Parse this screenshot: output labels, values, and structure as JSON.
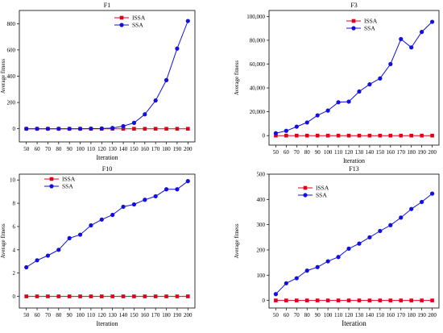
{
  "figure": {
    "background": "#ffffff"
  },
  "style": {
    "issa_color": "#e0001a",
    "ssa_color": "#1010e0",
    "axis_color": "#000000"
  },
  "chart_data": [
    {
      "type": "line",
      "title": "F1",
      "xlabel": "Iteration",
      "ylabel": "Average fitness",
      "categories": [
        "50",
        "60",
        "70",
        "80",
        "90",
        "100",
        "110",
        "120",
        "130",
        "140",
        "150",
        "160",
        "170",
        "180",
        "190",
        "200"
      ],
      "ylim": [
        -100,
        900
      ],
      "yticks": [
        0,
        200,
        400,
        600,
        800
      ],
      "ytick_labels": [
        "0",
        "200",
        "400",
        "600",
        "800"
      ],
      "grid": false,
      "legend_position": "upper-center",
      "series": [
        {
          "name": "ISSA",
          "marker": "square",
          "values": [
            0,
            0,
            0,
            0,
            0,
            0,
            0,
            0,
            0,
            0,
            0,
            0,
            0,
            0,
            0,
            0
          ]
        },
        {
          "name": "SSA",
          "marker": "circle",
          "values": [
            0,
            0,
            0,
            0,
            0,
            0,
            1,
            2,
            6,
            20,
            45,
            110,
            215,
            370,
            610,
            820
          ]
        }
      ]
    },
    {
      "type": "line",
      "title": "F3",
      "xlabel": "Iteration",
      "ylabel": "Average fitness",
      "categories": [
        "50",
        "60",
        "70",
        "80",
        "90",
        "100",
        "110",
        "120",
        "130",
        "140",
        "150",
        "160",
        "170",
        "180",
        "190",
        "200"
      ],
      "ylim": [
        -8000,
        105000
      ],
      "yticks": [
        0,
        20000,
        40000,
        60000,
        80000,
        100000
      ],
      "ytick_labels": [
        "0",
        "20,000",
        "40,000",
        "60,000",
        "80,000",
        "100,000"
      ],
      "grid": false,
      "legend_position": "upper-center",
      "series": [
        {
          "name": "ISSA",
          "marker": "square",
          "values": [
            0,
            0,
            0,
            0,
            0,
            0,
            0,
            0,
            0,
            0,
            0,
            0,
            0,
            0,
            0,
            0
          ]
        },
        {
          "name": "SSA",
          "marker": "circle",
          "values": [
            2000,
            4000,
            7500,
            11000,
            17000,
            21000,
            28000,
            28500,
            37000,
            43000,
            48000,
            60000,
            81000,
            74000,
            87000,
            95500
          ]
        }
      ]
    },
    {
      "type": "line",
      "title": "F10",
      "xlabel": "Iteration",
      "ylabel": "Average fitness",
      "categories": [
        "50",
        "60",
        "70",
        "80",
        "90",
        "100",
        "110",
        "120",
        "130",
        "140",
        "150",
        "160",
        "170",
        "180",
        "190",
        "200"
      ],
      "ylim": [
        -1,
        10.5
      ],
      "yticks": [
        0,
        2,
        4,
        6,
        8,
        10
      ],
      "ytick_labels": [
        "0",
        "2",
        "4",
        "6",
        "8",
        "10"
      ],
      "grid": false,
      "legend_position": "upper-left",
      "series": [
        {
          "name": "ISSA",
          "marker": "square",
          "values": [
            0,
            0,
            0,
            0,
            0,
            0,
            0,
            0,
            0,
            0,
            0,
            0,
            0,
            0,
            0,
            0
          ]
        },
        {
          "name": "SSA",
          "marker": "circle",
          "values": [
            2.5,
            3.1,
            3.5,
            4.0,
            5.0,
            5.3,
            6.1,
            6.6,
            7.0,
            7.7,
            7.9,
            8.3,
            8.6,
            9.2,
            9.2,
            9.9
          ]
        }
      ]
    },
    {
      "type": "line",
      "title": "F13",
      "xlabel": "Iteration",
      "ylabel": "Average fitness",
      "categories": [
        "50",
        "60",
        "70",
        "80",
        "90",
        "100",
        "110",
        "120",
        "130",
        "140",
        "150",
        "160",
        "170",
        "180",
        "190",
        "200"
      ],
      "ylim": [
        -30,
        500
      ],
      "yticks": [
        0,
        100,
        200,
        300,
        400,
        500
      ],
      "ytick_labels": [
        "0",
        "100",
        "200",
        "300",
        "400",
        "500"
      ],
      "grid": false,
      "legend_position": "upper-left",
      "series": [
        {
          "name": "ISSA",
          "marker": "square",
          "values": [
            0,
            0,
            0,
            0,
            0,
            0,
            0,
            0,
            0,
            0,
            0,
            0,
            0,
            0,
            0,
            0
          ]
        },
        {
          "name": "SSA",
          "marker": "circle",
          "values": [
            25,
            68,
            88,
            118,
            132,
            155,
            172,
            205,
            225,
            250,
            275,
            298,
            328,
            362,
            390,
            423
          ]
        }
      ]
    }
  ]
}
